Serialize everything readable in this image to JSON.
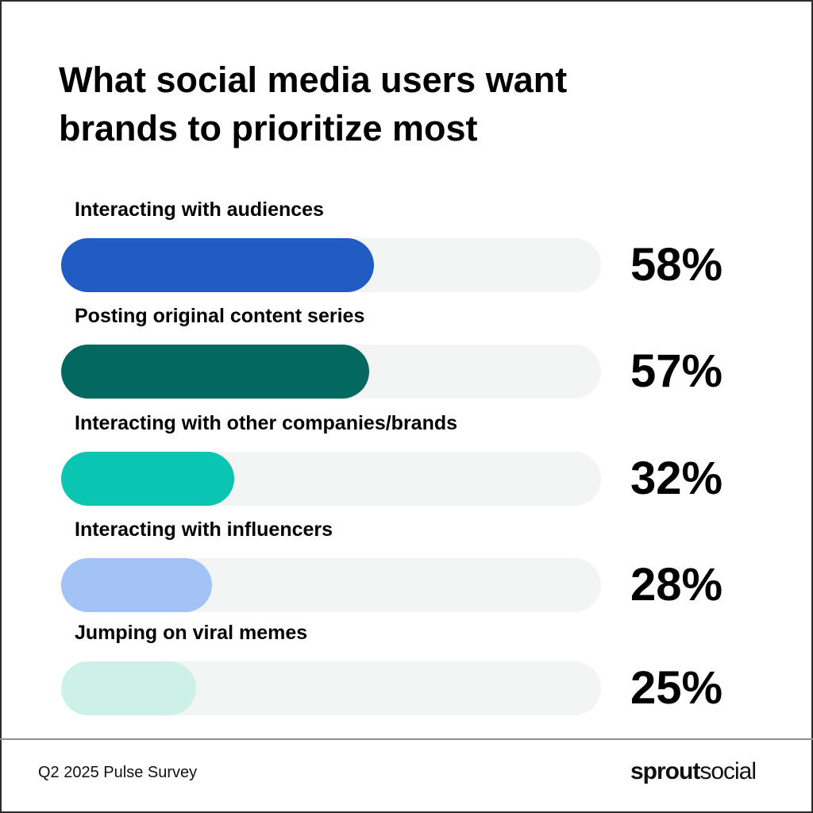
{
  "chart_data": {
    "type": "bar",
    "orientation": "horizontal",
    "title": "What social media users want brands to prioritize most",
    "categories": [
      "Interacting with audiences",
      "Posting original content series",
      "Interacting with other companies/brands",
      "Interacting with influencers",
      "Jumping on viral memes"
    ],
    "values": [
      58,
      57,
      32,
      28,
      25
    ],
    "value_labels": [
      "58%",
      "57%",
      "32%",
      "28%",
      "25%"
    ],
    "xlim": [
      0,
      100
    ],
    "colors": [
      "#215cc4",
      "#036860",
      "#0ac5b2",
      "#a3c3f7",
      "#cdf1e8"
    ],
    "track_color": "#f3f4f4",
    "grid": false
  },
  "footer": {
    "source": "Q2 2025 Pulse Survey",
    "logo_bold": "sprout",
    "logo_light": "social"
  }
}
